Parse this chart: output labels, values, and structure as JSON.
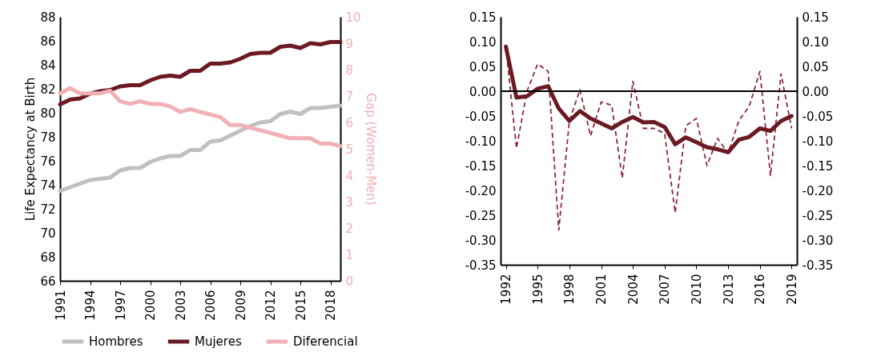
{
  "chart_data": [
    {
      "type": "line",
      "xlabel": null,
      "ylabel": "Life Expectancy at Birth",
      "y2label": "Gap (Women-Men)",
      "x": [
        1991,
        1992,
        1993,
        1994,
        1995,
        1996,
        1997,
        1998,
        1999,
        2000,
        2001,
        2002,
        2003,
        2004,
        2005,
        2006,
        2007,
        2008,
        2009,
        2010,
        2011,
        2012,
        2013,
        2014,
        2015,
        2016,
        2017,
        2018,
        2019
      ],
      "series": [
        {
          "name": "Hombres",
          "color": "#c0c0c0",
          "values": [
            73.5,
            73.8,
            74.1,
            74.4,
            74.5,
            74.6,
            75.2,
            75.4,
            75.4,
            75.9,
            76.2,
            76.4,
            76.4,
            76.9,
            76.9,
            77.6,
            77.7,
            78.1,
            78.5,
            78.9,
            79.2,
            79.3,
            79.9,
            80.1,
            79.9,
            80.4,
            80.4,
            80.5,
            80.6
          ]
        },
        {
          "name": "Mujeres",
          "color": "#6b1a24",
          "values": [
            80.7,
            81.1,
            81.2,
            81.6,
            81.8,
            81.9,
            82.2,
            82.3,
            82.3,
            82.7,
            83.0,
            83.1,
            83.0,
            83.5,
            83.5,
            84.1,
            84.1,
            84.2,
            84.5,
            84.9,
            85.0,
            85.0,
            85.5,
            85.6,
            85.4,
            85.8,
            85.7,
            85.9,
            85.9
          ]
        },
        {
          "name": "Diferencial",
          "color": "#f0b0b5",
          "axis": "y2",
          "values": [
            7.1,
            7.3,
            7.1,
            7.1,
            7.1,
            7.2,
            6.8,
            6.7,
            6.8,
            6.7,
            6.7,
            6.6,
            6.4,
            6.5,
            6.4,
            6.3,
            6.2,
            5.9,
            5.9,
            5.8,
            5.7,
            5.6,
            5.5,
            5.4,
            5.4,
            5.4,
            5.2,
            5.2,
            5.1
          ]
        }
      ],
      "xlim": [
        1991,
        2019
      ],
      "xticks": [
        1991,
        1994,
        1997,
        2000,
        2003,
        2006,
        2009,
        2012,
        2015,
        2018
      ],
      "ylim": [
        66,
        88
      ],
      "yticks": [
        66,
        68,
        70,
        72,
        74,
        76,
        78,
        80,
        82,
        84,
        86,
        88
      ],
      "y2lim": [
        0,
        10
      ],
      "y2ticks": [
        0,
        1,
        2,
        3,
        4,
        5,
        6,
        7,
        8,
        9,
        10
      ],
      "legend": "bottom",
      "line_style": "solid",
      "marker": "none"
    },
    {
      "type": "line",
      "x": [
        1992,
        1993,
        1994,
        1995,
        1996,
        1997,
        1998,
        1999,
        2000,
        2001,
        2002,
        2003,
        2004,
        2005,
        2006,
        2007,
        2008,
        2009,
        2010,
        2011,
        2012,
        2013,
        2014,
        2015,
        2016,
        2017,
        2018,
        2019
      ],
      "series": [
        {
          "color": "#8b2a35",
          "line_style": "dashed",
          "values": [
            0.09,
            -0.115,
            0.0,
            0.055,
            0.04,
            -0.28,
            -0.06,
            0.003,
            -0.09,
            -0.022,
            -0.028,
            -0.175,
            0.02,
            -0.075,
            -0.075,
            -0.085,
            -0.245,
            -0.07,
            -0.055,
            -0.15,
            -0.095,
            -0.125,
            -0.06,
            -0.03,
            0.04,
            -0.17,
            0.035,
            -0.075
          ]
        },
        {
          "color": "#6b1a24",
          "line_style": "solid",
          "values": [
            0.09,
            -0.013,
            -0.01,
            0.005,
            0.01,
            -0.035,
            -0.06,
            -0.04,
            -0.055,
            -0.065,
            -0.075,
            -0.062,
            -0.052,
            -0.063,
            -0.062,
            -0.072,
            -0.107,
            -0.093,
            -0.103,
            -0.113,
            -0.117,
            -0.123,
            -0.098,
            -0.092,
            -0.075,
            -0.08,
            -0.06,
            -0.05
          ]
        }
      ],
      "xlim": [
        1991.5,
        2019.5
      ],
      "xticks": [
        1992,
        1995,
        1998,
        2001,
        2004,
        2007,
        2010,
        2013,
        2016,
        2019
      ],
      "ylim": [
        -0.35,
        0.15
      ],
      "yticks": [
        {
          "value": -0.35,
          "label": "-0.35"
        },
        {
          "value": -0.3,
          "label": "-0.30"
        },
        {
          "value": -0.25,
          "label": "-0.25"
        },
        {
          "value": -0.2,
          "label": "-0.20"
        },
        {
          "value": -0.15,
          "label": "-0.15"
        },
        {
          "value": -0.1,
          "label": "-0.10"
        },
        {
          "value": -0.05,
          "label": "-0.05"
        },
        {
          "value": 0,
          "label": "0.00"
        },
        {
          "value": 0.05,
          "label": "0.05"
        },
        {
          "value": 0.1,
          "label": "0.10"
        },
        {
          "value": 0.15,
          "label": "0.15"
        }
      ],
      "y2lim": [
        -0.35,
        0.15
      ],
      "y2ticks": [
        {
          "value": -0.35,
          "label": "-0.35"
        },
        {
          "value": -0.3,
          "label": "-0.30"
        },
        {
          "value": -0.25,
          "label": "-0.25"
        },
        {
          "value": -0.2,
          "label": "-0.20"
        },
        {
          "value": -0.15,
          "label": "-0.15"
        },
        {
          "value": -0.1,
          "label": "-0.10"
        },
        {
          "value": -0.05,
          "label": "-0.05"
        },
        {
          "value": 0,
          "label": "0.00"
        },
        {
          "value": 0.05,
          "label": "0.05"
        },
        {
          "value": 0.1,
          "label": "0.10"
        },
        {
          "value": 0.15,
          "label": "0.15"
        }
      ],
      "ref_lines": [
        {
          "axis": "y2",
          "value": 0,
          "color": "#000000"
        }
      ],
      "legend": false,
      "marker": "none"
    }
  ]
}
